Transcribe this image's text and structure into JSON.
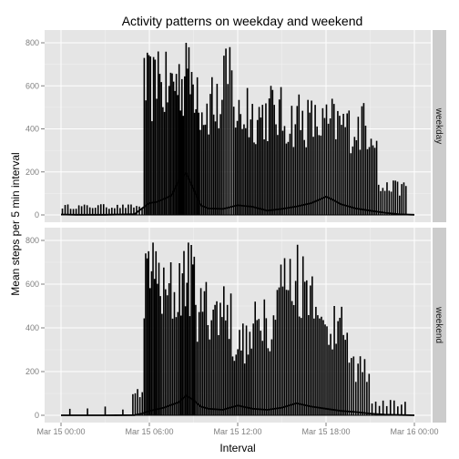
{
  "chart_data": {
    "type": "line",
    "title": "Activity patterns on weekday and weekend",
    "xlabel": "Interval",
    "ylabel": "Mean steps per 5 min interval",
    "x_tick_labels": [
      "Mar 15 00:00",
      "Mar 15 06:00",
      "Mar 15 12:00",
      "Mar 15 18:00",
      "Mar 16 00:00"
    ],
    "x_range_hours": [
      0,
      24
    ],
    "y_ticks": [
      0,
      200,
      400,
      600,
      800
    ],
    "ylim": [
      0,
      800
    ],
    "grid": true,
    "panel_background": "#e5e5e5",
    "strip_background": "#cccccc",
    "line_color": "#000000",
    "panels": [
      {
        "name": "weekday",
        "mean_line": [
          {
            "hour": 0.0,
            "steps": 2
          },
          {
            "hour": 1.0,
            "steps": 1
          },
          {
            "hour": 2.0,
            "steps": 1
          },
          {
            "hour": 3.0,
            "steps": 1
          },
          {
            "hour": 4.0,
            "steps": 2
          },
          {
            "hour": 5.0,
            "steps": 4
          },
          {
            "hour": 5.5,
            "steps": 30
          },
          {
            "hour": 6.0,
            "steps": 55
          },
          {
            "hour": 6.5,
            "steps": 60
          },
          {
            "hour": 7.0,
            "steps": 75
          },
          {
            "hour": 7.5,
            "steps": 90
          },
          {
            "hour": 8.0,
            "steps": 160
          },
          {
            "hour": 8.5,
            "steps": 195
          },
          {
            "hour": 9.0,
            "steps": 120
          },
          {
            "hour": 9.5,
            "steps": 45
          },
          {
            "hour": 10.0,
            "steps": 30
          },
          {
            "hour": 11.0,
            "steps": 28
          },
          {
            "hour": 12.0,
            "steps": 45
          },
          {
            "hour": 13.0,
            "steps": 38
          },
          {
            "hour": 14.0,
            "steps": 20
          },
          {
            "hour": 15.0,
            "steps": 28
          },
          {
            "hour": 16.0,
            "steps": 40
          },
          {
            "hour": 17.0,
            "steps": 55
          },
          {
            "hour": 18.0,
            "steps": 85
          },
          {
            "hour": 18.5,
            "steps": 70
          },
          {
            "hour": 19.0,
            "steps": 50
          },
          {
            "hour": 20.0,
            "steps": 30
          },
          {
            "hour": 21.0,
            "steps": 20
          },
          {
            "hour": 22.0,
            "steps": 10
          },
          {
            "hour": 23.0,
            "steps": 3
          },
          {
            "hour": 24.0,
            "steps": 1
          }
        ],
        "spikes": [
          {
            "hour_start": 0.0,
            "hour_end": 5.6,
            "max": 50,
            "count": 30
          },
          {
            "hour_start": 5.6,
            "hour_end": 7.5,
            "max": 760,
            "count": 18
          },
          {
            "hour_start": 7.5,
            "hour_end": 9.4,
            "max": 800,
            "count": 20
          },
          {
            "hour_start": 9.4,
            "hour_end": 11.0,
            "max": 640,
            "count": 14
          },
          {
            "hour_start": 11.0,
            "hour_end": 11.8,
            "max": 780,
            "count": 6
          },
          {
            "hour_start": 11.8,
            "hour_end": 13.4,
            "max": 590,
            "count": 14
          },
          {
            "hour_start": 13.4,
            "hour_end": 15.0,
            "max": 600,
            "count": 14
          },
          {
            "hour_start": 15.0,
            "hour_end": 17.2,
            "max": 560,
            "count": 18
          },
          {
            "hour_start": 17.2,
            "hour_end": 19.5,
            "max": 540,
            "count": 18
          },
          {
            "hour_start": 19.5,
            "hour_end": 21.5,
            "max": 520,
            "count": 16
          },
          {
            "hour_start": 21.5,
            "hour_end": 23.5,
            "max": 160,
            "count": 14
          }
        ]
      },
      {
        "name": "weekend",
        "mean_line": [
          {
            "hour": 0.0,
            "steps": 0
          },
          {
            "hour": 3.0,
            "steps": 0
          },
          {
            "hour": 5.0,
            "steps": 1
          },
          {
            "hour": 5.5,
            "steps": 8
          },
          {
            "hour": 6.0,
            "steps": 20
          },
          {
            "hour": 7.0,
            "steps": 35
          },
          {
            "hour": 8.0,
            "steps": 60
          },
          {
            "hour": 8.5,
            "steps": 90
          },
          {
            "hour": 9.0,
            "steps": 70
          },
          {
            "hour": 9.5,
            "steps": 40
          },
          {
            "hour": 10.0,
            "steps": 30
          },
          {
            "hour": 11.0,
            "steps": 25
          },
          {
            "hour": 12.0,
            "steps": 45
          },
          {
            "hour": 13.0,
            "steps": 30
          },
          {
            "hour": 14.0,
            "steps": 25
          },
          {
            "hour": 15.0,
            "steps": 35
          },
          {
            "hour": 16.0,
            "steps": 55
          },
          {
            "hour": 17.0,
            "steps": 40
          },
          {
            "hour": 18.0,
            "steps": 30
          },
          {
            "hour": 19.0,
            "steps": 20
          },
          {
            "hour": 20.0,
            "steps": 15
          },
          {
            "hour": 21.0,
            "steps": 8
          },
          {
            "hour": 22.0,
            "steps": 3
          },
          {
            "hour": 24.0,
            "steps": 0
          }
        ],
        "spikes": [
          {
            "hour_start": 0.0,
            "hour_end": 4.8,
            "max": 40,
            "count": 4
          },
          {
            "hour_start": 4.8,
            "hour_end": 5.6,
            "max": 120,
            "count": 5
          },
          {
            "hour_start": 5.6,
            "hour_end": 6.8,
            "max": 790,
            "count": 12
          },
          {
            "hour_start": 6.8,
            "hour_end": 8.0,
            "max": 700,
            "count": 10
          },
          {
            "hour_start": 8.0,
            "hour_end": 9.2,
            "max": 790,
            "count": 12
          },
          {
            "hour_start": 9.2,
            "hour_end": 10.4,
            "max": 610,
            "count": 10
          },
          {
            "hour_start": 10.4,
            "hour_end": 11.6,
            "max": 590,
            "count": 10
          },
          {
            "hour_start": 11.6,
            "hour_end": 13.0,
            "max": 420,
            "count": 12
          },
          {
            "hour_start": 13.0,
            "hour_end": 14.5,
            "max": 530,
            "count": 12
          },
          {
            "hour_start": 14.5,
            "hour_end": 17.5,
            "max": 780,
            "count": 24
          },
          {
            "hour_start": 17.5,
            "hour_end": 19.5,
            "max": 500,
            "count": 16
          },
          {
            "hour_start": 19.5,
            "hour_end": 21.0,
            "max": 270,
            "count": 10
          },
          {
            "hour_start": 21.0,
            "hour_end": 23.5,
            "max": 70,
            "count": 10
          }
        ]
      }
    ]
  }
}
